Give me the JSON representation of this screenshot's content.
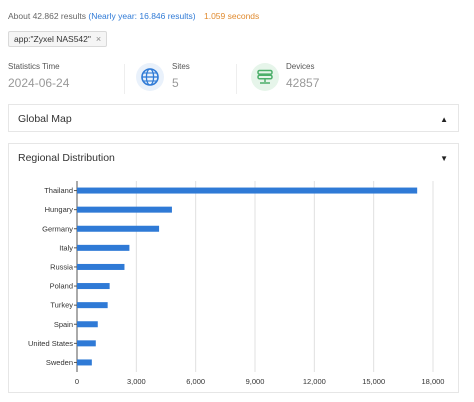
{
  "results": {
    "about": "About 42.862 results",
    "nearly_year": "(Nearly year: 16.846 results)",
    "time": "1.059 seconds"
  },
  "query_tag": {
    "text": "app:\"Zyxel NAS542\"",
    "close": "×"
  },
  "stats": {
    "statistics_time": {
      "label": "Statistics Time",
      "value": "2024-06-24"
    },
    "sites": {
      "label": "Sites",
      "value": "5",
      "icon": "globe-icon"
    },
    "devices": {
      "label": "Devices",
      "value": "42857",
      "icon": "server-stack-icon"
    }
  },
  "panels": {
    "global_map": {
      "title": "Global Map",
      "caret": "▲"
    },
    "regional": {
      "title": "Regional Distribution",
      "caret": "▼"
    }
  },
  "colors": {
    "bar": "#2f7ad6",
    "link": "#2f7ad6",
    "time": "#e08a2e",
    "devices_icon": "#4caf6a"
  },
  "chart_data": {
    "type": "bar",
    "orientation": "horizontal",
    "categories": [
      "Thailand",
      "Hungary",
      "Germany",
      "Italy",
      "Russia",
      "Poland",
      "Turkey",
      "Spain",
      "United States",
      "Sweden"
    ],
    "values": [
      17200,
      4800,
      4150,
      2650,
      2400,
      1650,
      1550,
      1050,
      950,
      750
    ],
    "xlim": [
      0,
      18000
    ],
    "xticks": [
      "0",
      "3,000",
      "6,000",
      "9,000",
      "12,000",
      "15,000",
      "18,000"
    ],
    "grid": true
  }
}
